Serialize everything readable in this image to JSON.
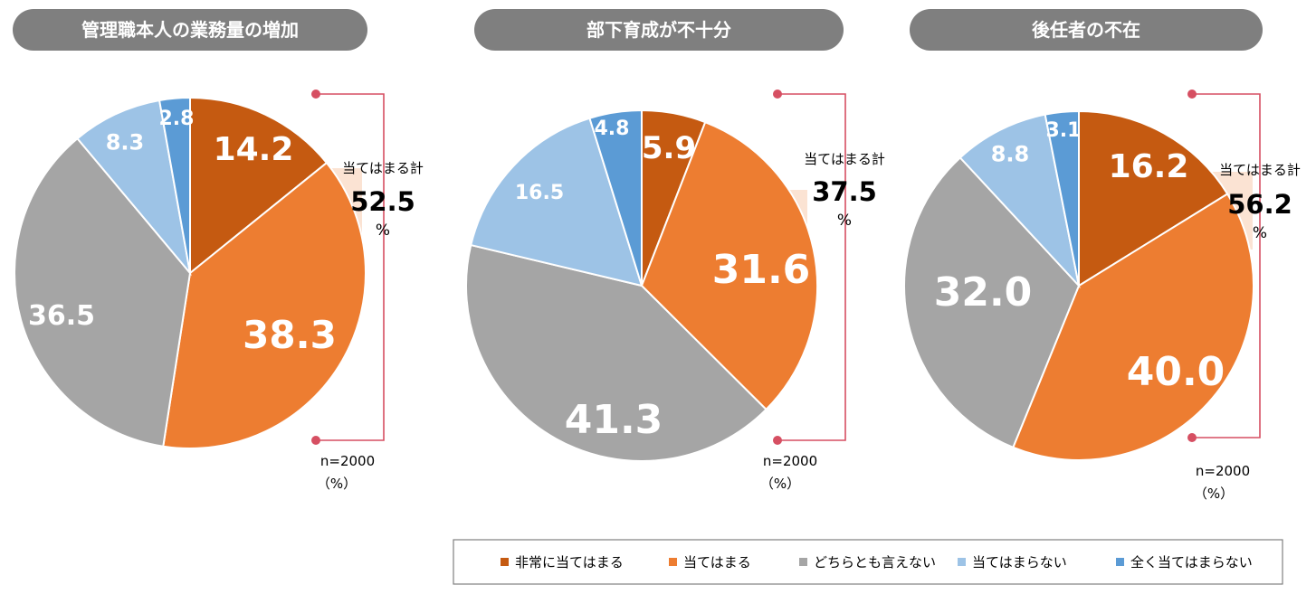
{
  "colors": {
    "pill_bg": "#7f7f7f",
    "bracket": "#d64f62",
    "sum_box": "#fbe3d3",
    "legend_border": "#808080",
    "categories": [
      "#c55a11",
      "#ed7d31",
      "#a5a5a5",
      "#9dc3e6",
      "#5b9bd5"
    ]
  },
  "legend": {
    "items": [
      "非常に当てはまる",
      "当てはまる",
      "どちらとも言えない",
      "当てはまらない",
      "全く当てはまらない"
    ]
  },
  "chart_data": [
    {
      "type": "pie",
      "title": "管理職本人の業務量の増加",
      "categories": [
        "非常に当てはまる",
        "当てはまる",
        "どちらとも言えない",
        "当てはまらない",
        "全く当てはまらない"
      ],
      "values": [
        14.2,
        38.3,
        36.5,
        8.3,
        2.8
      ],
      "labels": [
        "14.2",
        "38.3",
        "36.5",
        "8.3",
        "2.8"
      ],
      "summary": {
        "title": "当てはまる計",
        "value": "52.5",
        "unit": "%"
      },
      "n_label": "n=2000",
      "unit_label": "（%）"
    },
    {
      "type": "pie",
      "title": "部下育成が不十分",
      "categories": [
        "非常に当てはまる",
        "当てはまる",
        "どちらとも言えない",
        "当てはまらない",
        "全く当てはまらない"
      ],
      "values": [
        5.9,
        31.6,
        41.3,
        16.5,
        4.8
      ],
      "labels": [
        "5.9",
        "31.6",
        "41.3",
        "16.5",
        "4.8"
      ],
      "summary": {
        "title": "当てはまる計",
        "value": "37.5",
        "unit": "%"
      },
      "n_label": "n=2000",
      "unit_label": "（%）"
    },
    {
      "type": "pie",
      "title": "後任者の不在",
      "categories": [
        "非常に当てはまる",
        "当てはまる",
        "どちらとも言えない",
        "当てはまらない",
        "全く当てはまらない"
      ],
      "values": [
        16.2,
        40.0,
        32.0,
        8.8,
        3.1
      ],
      "labels": [
        "16.2",
        "40.0",
        "32.0",
        "8.8",
        "3.1"
      ],
      "summary": {
        "title": "当てはまる計",
        "value": "56.2",
        "unit": "%"
      },
      "n_label": "n=2000",
      "unit_label": "（%）"
    }
  ]
}
